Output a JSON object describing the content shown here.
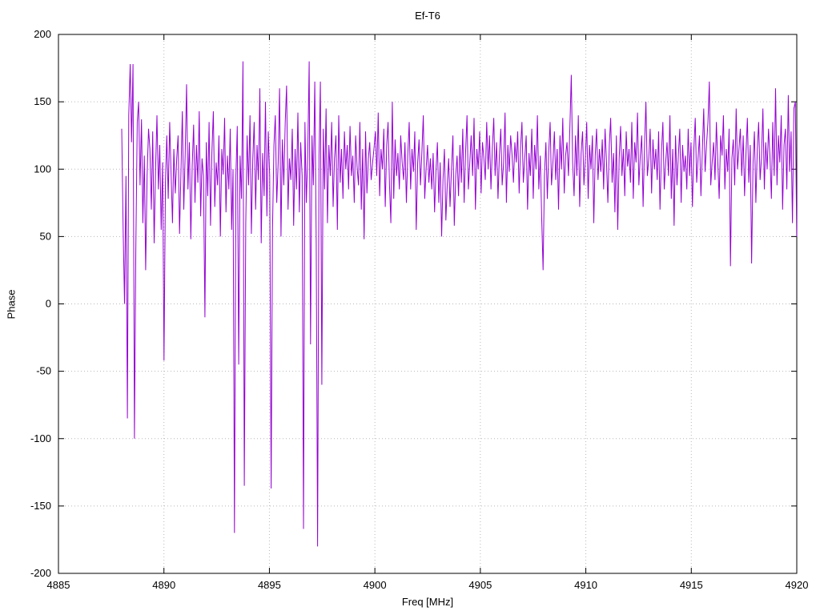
{
  "chart_data": {
    "type": "line",
    "title": "Ef-T6",
    "xlabel": "Freq [MHz]",
    "ylabel": "Phase",
    "xlim": [
      4885,
      4920
    ],
    "ylim": [
      -200,
      200
    ],
    "x_ticks": [
      4885,
      4890,
      4895,
      4900,
      4905,
      4910,
      4915,
      4920
    ],
    "y_ticks": [
      -200,
      -150,
      -100,
      -50,
      0,
      50,
      100,
      150,
      200
    ],
    "grid": true,
    "legend": "none",
    "line_color": "#9400d3",
    "grid_color": "#b8b8b8",
    "border_color": "#000000",
    "series": [
      {
        "name": "phase",
        "x_start": 4888.0,
        "x_step": 0.0668,
        "values": [
          130,
          55,
          0,
          95,
          -85,
          140,
          178,
          120,
          178,
          -100,
          40,
          135,
          150,
          88,
          137,
          60,
          110,
          25,
          95,
          130,
          115,
          70,
          128,
          45,
          100,
          140,
          85,
          118,
          55,
          105,
          -42,
          90,
          125,
          78,
          135,
          98,
          60,
          115,
          82,
          108,
          125,
          52,
          96,
          143,
          70,
          110,
          163,
          85,
          120,
          48,
          102,
          133,
          75,
          118,
          90,
          143,
          65,
          108,
          95,
          -10,
          120,
          80,
          135,
          58,
          112,
          143,
          72,
          105,
          88,
          125,
          50,
          115,
          96,
          138,
          68,
          110,
          85,
          130,
          55,
          100,
          -170,
          95,
          132,
          -45,
          110,
          78,
          180,
          -135,
          60,
          125,
          88,
          140,
          52,
          108,
          135,
          70,
          118,
          92,
          160,
          45,
          112,
          80,
          150,
          65,
          128,
          95,
          -137,
          55,
          118,
          140,
          75,
          105,
          160,
          50,
          122,
          88,
          135,
          162,
          70,
          108,
          92,
          130,
          58,
          115,
          85,
          142,
          68,
          120,
          95,
          -167,
          135,
          75,
          110,
          180,
          -30,
          125,
          88,
          165,
          45,
          -180,
          110,
          165,
          -60,
          130,
          85,
          145,
          60,
          118,
          95,
          135,
          72,
          108,
          125,
          55,
          140,
          90,
          115,
          78,
          128,
          100,
          118,
          85,
          132,
          95,
          110,
          75,
          125,
          102,
          88,
          135,
          70,
          115,
          48,
          128,
          82,
          108,
          120,
          92,
          105,
          115,
          128,
          95,
          142,
          80,
          115,
          100,
          130,
          72,
          118,
          135,
          88,
          60,
          150,
          78,
          122,
          95,
          112,
          85,
          125,
          105,
          92,
          120,
          75,
          110,
          135,
          85,
          115,
          98,
          128,
          55,
          105,
          122,
          88,
          112,
          140,
          78,
          100,
          118,
          90,
          108,
          85,
          112,
          68,
          98,
          120,
          75,
          105,
          50,
          92,
          115,
          62,
          88,
          108,
          72,
          100,
          125,
          58,
          95,
          110,
          80,
          118,
          90,
          130,
          75,
          112,
          140,
          85,
          105,
          125,
          95,
          138,
          70,
          115,
          100,
          128,
          82,
          120,
          108,
          92,
          135,
          100,
          125,
          85,
          115,
          138,
          95,
          120,
          78,
          110,
          130,
          88,
          105,
          142,
          75,
          118,
          98,
          125,
          110,
          90,
          120,
          105,
          128,
          82,
          115,
          135,
          90,
          108,
          125,
          70,
          112,
          95,
          130,
          78,
          118,
          100,
          140,
          85,
          110,
          65,
          25,
          95,
          120,
          78,
          112,
          135,
          88,
          105,
          128,
          92,
          115,
          70,
          125,
          100,
          138,
          82,
          110,
          120,
          95,
          130,
          170,
          105,
          80,
          125,
          95,
          140,
          72,
          112,
          128,
          88,
          108,
          135,
          78,
          118,
          100,
          125,
          60,
          110,
          130,
          92,
          115,
          98,
          122,
          85,
          130,
          105,
          75,
          118,
          138,
          90,
          112,
          68,
          125,
          55,
          108,
          132,
          95,
          115,
          80,
          128,
          102,
          115,
          90,
          135,
          78,
          120,
          105,
          142,
          88,
          110,
          125,
          72,
          118,
          150,
          95,
          108,
          130,
          82,
          122,
          100,
          115,
          92,
          128,
          70,
          112,
          135,
          85,
          105,
          120,
          95,
          140,
          78,
          115,
          58,
          125,
          88,
          110,
          130,
          75,
          118,
          98,
          110,
          85,
          130,
          95,
          120,
          72,
          115,
          138,
          90,
          108,
          125,
          80,
          112,
          145,
          98,
          118,
          135,
          165,
          88,
          105,
          120,
          92,
          135,
          105,
          78,
          125,
          110,
          140,
          85,
          115,
          98,
          130,
          28,
          108,
          122,
          88,
          145,
          100,
          115,
          130,
          95,
          125,
          80,
          112,
          138,
          90,
          118,
          30,
          105,
          128,
          75,
          115,
          135,
          92,
          108,
          145,
          85,
          120,
          100,
          130,
          110,
          78,
          135,
          95,
          160,
          88,
          125,
          105,
          140,
          70,
          118,
          130,
          85,
          155,
          98,
          128,
          60,
          145,
          150,
          50
        ]
      }
    ]
  }
}
